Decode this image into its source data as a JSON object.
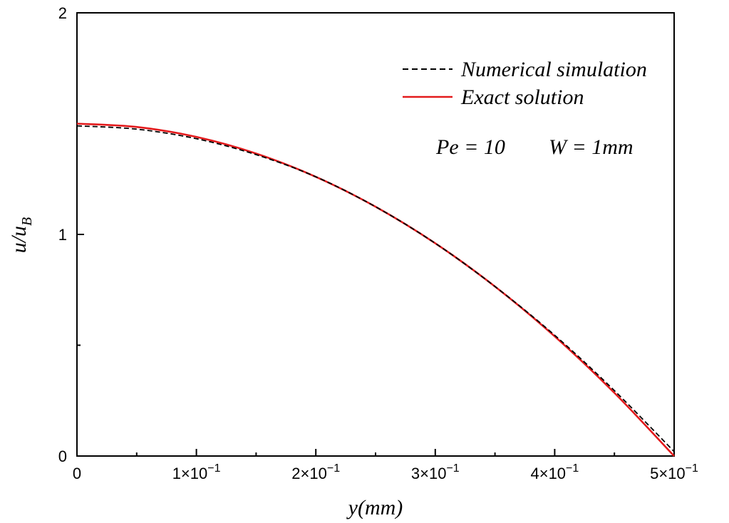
{
  "chart_data": {
    "type": "line",
    "xlabel": "y(mm)",
    "ylabel": "u/u",
    "ylabel_subscript": "B",
    "xlim": [
      0,
      0.5
    ],
    "ylim": [
      0,
      2
    ],
    "x_tick_labels": [
      "0",
      "1×10",
      "2×10",
      "3×10",
      "4×10",
      "5×10"
    ],
    "x_tick_exponent": "−1",
    "x_tick_values": [
      0,
      0.1,
      0.2,
      0.3,
      0.4,
      0.5
    ],
    "y_tick_labels": [
      "0",
      "1",
      "2"
    ],
    "y_tick_values": [
      0,
      1,
      2
    ],
    "grid": false,
    "legend_position": "top-right",
    "annotation": {
      "pe": "Pe = 10",
      "w": "W = 1mm"
    },
    "series": [
      {
        "name": "Numerical simulation",
        "color": "#000000",
        "style": "dashed",
        "x": [
          0,
          0.05,
          0.1,
          0.15,
          0.2,
          0.25,
          0.3,
          0.35,
          0.4,
          0.45,
          0.5
        ],
        "y": [
          1.49,
          1.475,
          1.432,
          1.36,
          1.26,
          1.125,
          0.96,
          0.765,
          0.545,
          0.295,
          0.02
        ]
      },
      {
        "name": "Exact solution",
        "color": "#e31a1c",
        "style": "solid",
        "x": [
          0,
          0.05,
          0.1,
          0.15,
          0.2,
          0.25,
          0.3,
          0.35,
          0.4,
          0.45,
          0.5
        ],
        "y": [
          1.5,
          1.485,
          1.44,
          1.365,
          1.26,
          1.125,
          0.96,
          0.765,
          0.54,
          0.285,
          0.0
        ]
      }
    ]
  }
}
